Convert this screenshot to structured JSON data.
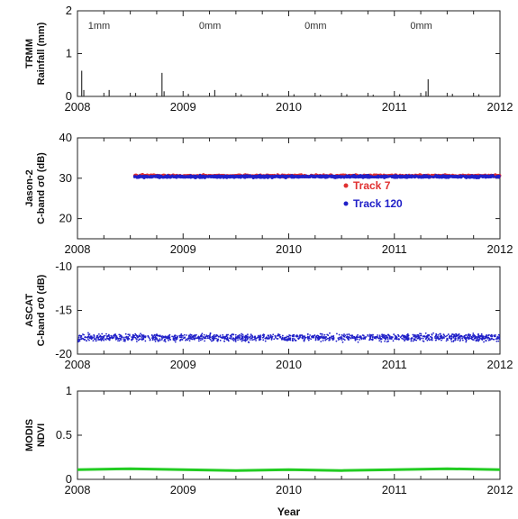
{
  "x_axis_label": "Year",
  "chart_data": [
    {
      "type": "bar",
      "ylabel_line1": "TRMM",
      "ylabel_line2": "Rainfall (mm)",
      "xlim": [
        2008,
        2012
      ],
      "ylim": [
        0,
        2
      ],
      "x_ticks": [
        2008,
        2009,
        2010,
        2011,
        2012
      ],
      "y_ticks": [
        0,
        1,
        2
      ],
      "annotations": [
        {
          "x": 2008.1,
          "text": "1mm"
        },
        {
          "x": 2009.15,
          "text": "0mm"
        },
        {
          "x": 2010.15,
          "text": "0mm"
        },
        {
          "x": 2011.15,
          "text": "0mm"
        }
      ],
      "bar_color": "#333333",
      "x": [
        2008.04,
        2008.06,
        2008.3,
        2008.55,
        2008.8,
        2008.82,
        2009.05,
        2009.3,
        2009.55,
        2009.8,
        2010.05,
        2010.3,
        2010.55,
        2010.8,
        2011.05,
        2011.3,
        2011.32,
        2011.55,
        2011.8
      ],
      "values": [
        0.6,
        0.15,
        0.15,
        0.08,
        0.55,
        0.12,
        0.06,
        0.15,
        0.05,
        0.06,
        0.05,
        0.04,
        0.05,
        0.04,
        0.05,
        0.12,
        0.4,
        0.06,
        0.05
      ]
    },
    {
      "type": "scatter",
      "ylabel_line1": "Jason-2",
      "ylabel_line2": "C-band σ0 (dB)",
      "xlim": [
        2008,
        2012
      ],
      "ylim": [
        15,
        40
      ],
      "x_ticks": [
        2008,
        2009,
        2010,
        2011,
        2012
      ],
      "y_ticks": [
        20,
        30,
        40
      ],
      "series": [
        {
          "name": "Track 7",
          "color": "#e03030",
          "x_range": [
            2008.54,
            2012.0
          ],
          "mean": 30.6,
          "spread": 0.35
        },
        {
          "name": "Track 120",
          "color": "#2020c8",
          "x_range": [
            2008.54,
            2012.0
          ],
          "mean": 30.4,
          "spread": 0.35
        }
      ],
      "legend_position": "lower-right"
    },
    {
      "type": "scatter",
      "ylabel_line1": "ASCAT",
      "ylabel_line2": "C-band σ0 (dB)",
      "xlim": [
        2008,
        2012
      ],
      "ylim": [
        -20,
        -10
      ],
      "x_ticks": [
        2008,
        2009,
        2010,
        2011,
        2012
      ],
      "y_ticks": [
        -20,
        -15,
        -10
      ],
      "series": [
        {
          "color": "#2020c8",
          "x_range": [
            2008.0,
            2012.0
          ],
          "mean": -18.1,
          "spread": 0.6
        }
      ]
    },
    {
      "type": "line",
      "ylabel_line1": "MODIS",
      "ylabel_line2": "NDVI",
      "xlim": [
        2008,
        2012
      ],
      "ylim": [
        0,
        1
      ],
      "x_ticks": [
        2008,
        2009,
        2010,
        2011,
        2012
      ],
      "y_ticks": [
        0,
        0.5,
        1
      ],
      "y_tick_labels": [
        "0",
        "0.5",
        "1"
      ],
      "series": [
        {
          "color": "#22cc22",
          "x": [
            2008.0,
            2008.5,
            2009.0,
            2009.5,
            2010.0,
            2010.5,
            2011.0,
            2011.5,
            2012.0
          ],
          "values": [
            0.11,
            0.12,
            0.11,
            0.1,
            0.11,
            0.1,
            0.11,
            0.12,
            0.11
          ]
        }
      ]
    }
  ]
}
